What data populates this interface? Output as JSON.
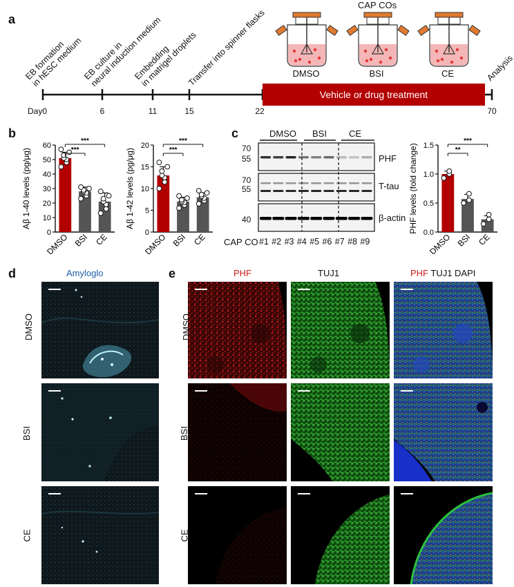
{
  "panel_a": {
    "letter": "a",
    "steps": [
      {
        "text1": "EB formation",
        "text2": "in hESC medium"
      },
      {
        "text1": "EB culture in",
        "text2": "neural induction medium"
      },
      {
        "text1": "Embedding",
        "text2": "in matrigel droplets"
      },
      {
        "text1": "Transfer into spinner flasks",
        "text2": ""
      }
    ],
    "analysis": "Analysis",
    "days": [
      "Day0",
      "6",
      "11",
      "15",
      "22",
      "70"
    ],
    "treatment_label": "Vehicle or drug treatment",
    "flask_title": "CAP COs",
    "flasks": [
      "DMSO",
      "BSI",
      "CE"
    ],
    "colors": {
      "treatment": "#b30000",
      "flask_orange": "#e07a30",
      "medium": "#f4b6b6"
    }
  },
  "panel_b": {
    "letter": "b",
    "groups": [
      "DMSO",
      "BSI",
      "CE"
    ],
    "colors": {
      "DMSO": "#b30000",
      "BSI": "#555555",
      "CE": "#555555"
    }
  },
  "chart_data": [
    {
      "type": "bar",
      "ylabel": "Aβ 1-40 levels (pg/μg)",
      "categories": [
        "DMSO",
        "BSI",
        "CE"
      ],
      "values": [
        51,
        28,
        21
      ],
      "errors": [
        4,
        3,
        6
      ],
      "points": [
        [
          45,
          48,
          50,
          51,
          53,
          55,
          57
        ],
        [
          23,
          25,
          27,
          28,
          29,
          30,
          31
        ],
        [
          13,
          16,
          19,
          21,
          23,
          25,
          28
        ]
      ],
      "yticks": [
        "0",
        "10",
        "20",
        "30",
        "40",
        "50",
        "60"
      ],
      "ylim": [
        0,
        60
      ],
      "sig": [
        {
          "from": "DMSO",
          "to": "BSI",
          "label": "***"
        },
        {
          "from": "DMSO",
          "to": "CE",
          "label": "***"
        }
      ]
    },
    {
      "type": "bar",
      "ylabel": "Aβ 1-42 levels (pg/μg)",
      "categories": [
        "DMSO",
        "BSI",
        "CE"
      ],
      "values": [
        13,
        7,
        8
      ],
      "errors": [
        2,
        1,
        1
      ],
      "points": [
        [
          10,
          11.5,
          12.5,
          13,
          14,
          15,
          16
        ],
        [
          5.5,
          6.2,
          6.8,
          7,
          7.4,
          7.8,
          8.3
        ],
        [
          6.5,
          7.2,
          7.8,
          8.2,
          8.6,
          9.0,
          9.5
        ]
      ],
      "yticks": [
        "0",
        "5",
        "10",
        "15",
        "20"
      ],
      "ylim": [
        0,
        20
      ],
      "sig": [
        {
          "from": "DMSO",
          "to": "BSI",
          "label": "***"
        },
        {
          "from": "DMSO",
          "to": "CE",
          "label": "***"
        }
      ]
    },
    {
      "type": "bar",
      "ylabel": "PHF levels (fold change)",
      "categories": [
        "DMSO",
        "BSI",
        "CE"
      ],
      "values": [
        1.0,
        0.57,
        0.22
      ],
      "errors": [
        0.05,
        0.08,
        0.06
      ],
      "points": [
        [
          0.93,
          1.0,
          1.05
        ],
        [
          0.5,
          0.55,
          0.66
        ],
        [
          0.14,
          0.22,
          0.3
        ]
      ],
      "yticks": [
        "0.0",
        "0.5",
        "1.0",
        "1.5"
      ],
      "ylim": [
        0,
        1.5
      ],
      "sig": [
        {
          "from": "DMSO",
          "to": "BSI",
          "label": "**"
        },
        {
          "from": "DMSO",
          "to": "CE",
          "label": "***"
        }
      ]
    }
  ],
  "panel_c": {
    "letter": "c",
    "groups": [
      "DMSO",
      "BSI",
      "CE"
    ],
    "markers": [
      "70",
      "55",
      "70",
      "55",
      "40"
    ],
    "blots": [
      "PHF",
      "T-tau",
      "β-actin"
    ],
    "lane_prefix": "CAP CO",
    "lanes": [
      "#1",
      "#2",
      "#3",
      "#4",
      "#5",
      "#6",
      "#7",
      "#8",
      "#9"
    ]
  },
  "panel_d": {
    "letter": "d",
    "title": "Amyloglo",
    "rows": [
      "DMSO",
      "BSI",
      "CE"
    ],
    "title_color": "#1f5fa8"
  },
  "panel_e": {
    "letter": "e",
    "col1": "PHF",
    "col2": "TUJ1",
    "col3a": "PHF",
    "col3b": " TUJ1 DAPI",
    "rows": [
      "DMSO",
      "BSI",
      "CE"
    ],
    "colors": {
      "phf": "#d11a1a",
      "tuj": "#1a8f1a"
    }
  }
}
